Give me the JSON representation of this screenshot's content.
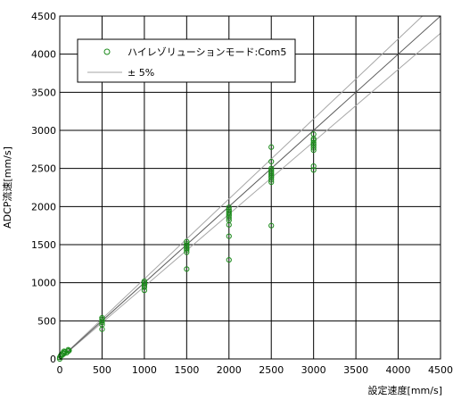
{
  "chart_data": {
    "type": "scatter",
    "title": "",
    "xlabel": "設定速度[mm/s]",
    "ylabel": "ADCP流速[mm/s]",
    "xlim": [
      0,
      4500
    ],
    "ylim": [
      0,
      4500
    ],
    "xticks": [
      0,
      500,
      1000,
      1500,
      2000,
      2500,
      3000,
      3500,
      4000,
      4500
    ],
    "yticks": [
      0,
      500,
      1000,
      1500,
      2000,
      2500,
      3000,
      3500,
      4000,
      4500
    ],
    "grid": true,
    "legend_position": "top-left",
    "series": [
      {
        "name": "ハイレゾリューションモード:Com5",
        "marker": "open-circle",
        "color": "#1a8a1a",
        "points": [
          [
            0,
            0
          ],
          [
            0,
            20
          ],
          [
            10,
            40
          ],
          [
            20,
            60
          ],
          [
            30,
            50
          ],
          [
            40,
            80
          ],
          [
            50,
            70
          ],
          [
            50,
            100
          ],
          [
            60,
            90
          ],
          [
            80,
            80
          ],
          [
            100,
            100
          ],
          [
            100,
            120
          ],
          [
            110,
            110
          ],
          [
            500,
            390
          ],
          [
            500,
            450
          ],
          [
            500,
            480
          ],
          [
            500,
            500
          ],
          [
            500,
            520
          ],
          [
            500,
            540
          ],
          [
            1000,
            900
          ],
          [
            1000,
            940
          ],
          [
            1000,
            960
          ],
          [
            1000,
            980
          ],
          [
            1000,
            1000
          ],
          [
            1000,
            1020
          ],
          [
            1500,
            1180
          ],
          [
            1500,
            1400
          ],
          [
            1500,
            1430
          ],
          [
            1500,
            1450
          ],
          [
            1500,
            1470
          ],
          [
            1500,
            1490
          ],
          [
            1500,
            1510
          ],
          [
            1500,
            1540
          ],
          [
            2000,
            1300
          ],
          [
            2000,
            1610
          ],
          [
            2000,
            1760
          ],
          [
            2000,
            1820
          ],
          [
            2000,
            1850
          ],
          [
            2000,
            1880
          ],
          [
            2000,
            1900
          ],
          [
            2000,
            1920
          ],
          [
            2000,
            1940
          ],
          [
            2000,
            1960
          ],
          [
            2000,
            1990
          ],
          [
            2500,
            1750
          ],
          [
            2500,
            2320
          ],
          [
            2500,
            2350
          ],
          [
            2500,
            2380
          ],
          [
            2500,
            2400
          ],
          [
            2500,
            2420
          ],
          [
            2500,
            2440
          ],
          [
            2500,
            2460
          ],
          [
            2500,
            2480
          ],
          [
            2500,
            2500
          ],
          [
            2500,
            2590
          ],
          [
            2500,
            2780
          ],
          [
            3000,
            2480
          ],
          [
            3000,
            2530
          ],
          [
            3000,
            2740
          ],
          [
            3000,
            2770
          ],
          [
            3000,
            2800
          ],
          [
            3000,
            2820
          ],
          [
            3000,
            2840
          ],
          [
            3000,
            2870
          ],
          [
            3000,
            2890
          ],
          [
            3000,
            2950
          ]
        ]
      },
      {
        "name": "± 5%",
        "type": "line",
        "color": "#a6a6a6",
        "lines": [
          {
            "slope": 1.05,
            "x": [
              0,
              4500
            ]
          },
          {
            "slope": 0.95,
            "x": [
              0,
              4500
            ]
          }
        ]
      },
      {
        "type": "line",
        "color": "#5a5a5a",
        "lines": [
          {
            "slope": 1.0,
            "x": [
              0,
              4500
            ]
          }
        ]
      }
    ]
  }
}
